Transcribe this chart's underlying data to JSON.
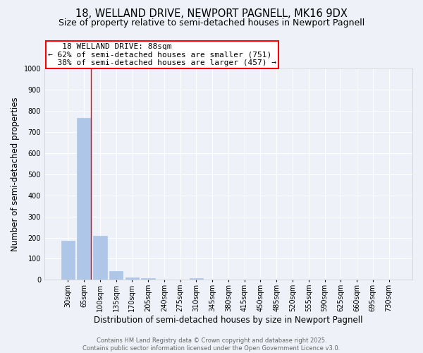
{
  "title_line1": "18, WELLAND DRIVE, NEWPORT PAGNELL, MK16 9DX",
  "title_line2": "Size of property relative to semi-detached houses in Newport Pagnell",
  "categories": [
    "30sqm",
    "65sqm",
    "100sqm",
    "135sqm",
    "170sqm",
    "205sqm",
    "240sqm",
    "275sqm",
    "310sqm",
    "345sqm",
    "380sqm",
    "415sqm",
    "450sqm",
    "485sqm",
    "520sqm",
    "555sqm",
    "590sqm",
    "625sqm",
    "660sqm",
    "695sqm",
    "730sqm"
  ],
  "values": [
    185,
    765,
    210,
    40,
    10,
    8,
    0,
    0,
    8,
    0,
    0,
    0,
    0,
    0,
    0,
    0,
    0,
    0,
    0,
    0,
    0
  ],
  "bar_color": "#aec6e8",
  "bar_edgecolor": "#aec6e8",
  "red_line_label": "18 WELLAND DRIVE: 88sqm",
  "pct_smaller": 62,
  "n_smaller": 751,
  "pct_larger": 38,
  "n_larger": 457,
  "ylabel": "Number of semi-detached properties",
  "xlabel": "Distribution of semi-detached houses by size in Newport Pagnell",
  "ylim": [
    0,
    1000
  ],
  "yticks": [
    0,
    100,
    200,
    300,
    400,
    500,
    600,
    700,
    800,
    900,
    1000
  ],
  "footnote_line1": "Contains HM Land Registry data © Crown copyright and database right 2025.",
  "footnote_line2": "Contains public sector information licensed under the Open Government Licence v3.0.",
  "background_color": "#eef2f8",
  "plot_background": "#eef2f8",
  "grid_color": "#ffffff",
  "title_fontsize": 10.5,
  "subtitle_fontsize": 9,
  "annotation_fontsize": 8,
  "axis_label_fontsize": 8.5,
  "tick_fontsize": 7
}
